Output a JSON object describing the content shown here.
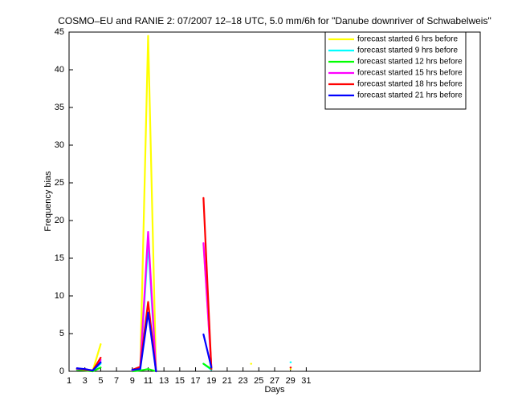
{
  "chart_data": {
    "type": "line",
    "title": "COSMO–EU and RANIE 2: 07/2007 12–18 UTC, 5.0 mm/6h for \"Danube downriver of Schwabelweis\"",
    "x_label": "Days",
    "y_label": "Frequency bias",
    "x": [
      1,
      2,
      3,
      4,
      5,
      6,
      7,
      8,
      9,
      10,
      11,
      12,
      13,
      14,
      15,
      16,
      17,
      18,
      19,
      20,
      21,
      22,
      23,
      24,
      25,
      26,
      27,
      28,
      29,
      30,
      31
    ],
    "series": [
      {
        "name": "forecast started 6 hrs before",
        "color": "#ffff00",
        "values": [
          null,
          0.3,
          0.2,
          0.1,
          3.6,
          null,
          null,
          null,
          0.1,
          0.4,
          44.5,
          0,
          null,
          null,
          null,
          null,
          null,
          16.8,
          0.5,
          null,
          null,
          null,
          null,
          1.0,
          null,
          null,
          null,
          null,
          0.3,
          null,
          null
        ]
      },
      {
        "name": "forecast started 9 hrs before",
        "color": "#00ffff",
        "values": [
          null,
          0.3,
          0.2,
          0.1,
          1.0,
          null,
          null,
          null,
          0.1,
          0.3,
          17,
          0,
          null,
          null,
          null,
          null,
          null,
          1.0,
          0.2,
          null,
          null,
          null,
          null,
          null,
          null,
          null,
          null,
          null,
          1.2,
          null,
          null
        ]
      },
      {
        "name": "forecast started 12 hrs before",
        "color": "#00ff00",
        "values": [
          null,
          0.2,
          0.1,
          0,
          0.5,
          null,
          null,
          null,
          0,
          0.1,
          0.3,
          0,
          null,
          null,
          null,
          null,
          null,
          1.0,
          0.3,
          null,
          null,
          null,
          null,
          null,
          null,
          null,
          null,
          null,
          null,
          null,
          null
        ]
      },
      {
        "name": "forecast started 15 hrs before",
        "color": "#ff00ff",
        "values": [
          null,
          0.3,
          0.3,
          0.1,
          1.5,
          null,
          null,
          null,
          0.1,
          0.5,
          18.5,
          0,
          null,
          null,
          null,
          null,
          null,
          17,
          0.5,
          null,
          null,
          null,
          null,
          null,
          null,
          null,
          null,
          null,
          null,
          null,
          null
        ]
      },
      {
        "name": "forecast started 18 hrs before",
        "color": "#ff0000",
        "values": [
          null,
          0.4,
          0.2,
          0.1,
          1.8,
          null,
          null,
          null,
          0.2,
          0.6,
          9.2,
          0,
          null,
          null,
          null,
          null,
          null,
          23,
          0.3,
          null,
          null,
          null,
          null,
          null,
          null,
          null,
          null,
          null,
          0.5,
          null,
          null
        ]
      },
      {
        "name": "forecast started 21 hrs before",
        "color": "#0000ff",
        "values": [
          null,
          0.4,
          0.3,
          0.1,
          1.2,
          null,
          null,
          null,
          0.2,
          0.3,
          7.8,
          0,
          null,
          null,
          null,
          null,
          null,
          4.9,
          0.5,
          null,
          null,
          null,
          null,
          null,
          null,
          null,
          null,
          null,
          null,
          null,
          null
        ]
      }
    ],
    "xlim": [
      1,
      53
    ],
    "xticks": [
      1,
      3,
      5,
      7,
      9,
      11,
      13,
      15,
      17,
      19,
      21,
      23,
      25,
      27,
      29,
      31
    ],
    "ylim": [
      0,
      45
    ],
    "yticks": [
      0,
      5,
      10,
      15,
      20,
      25,
      30,
      35,
      40,
      45
    ],
    "legend": "upper right"
  }
}
